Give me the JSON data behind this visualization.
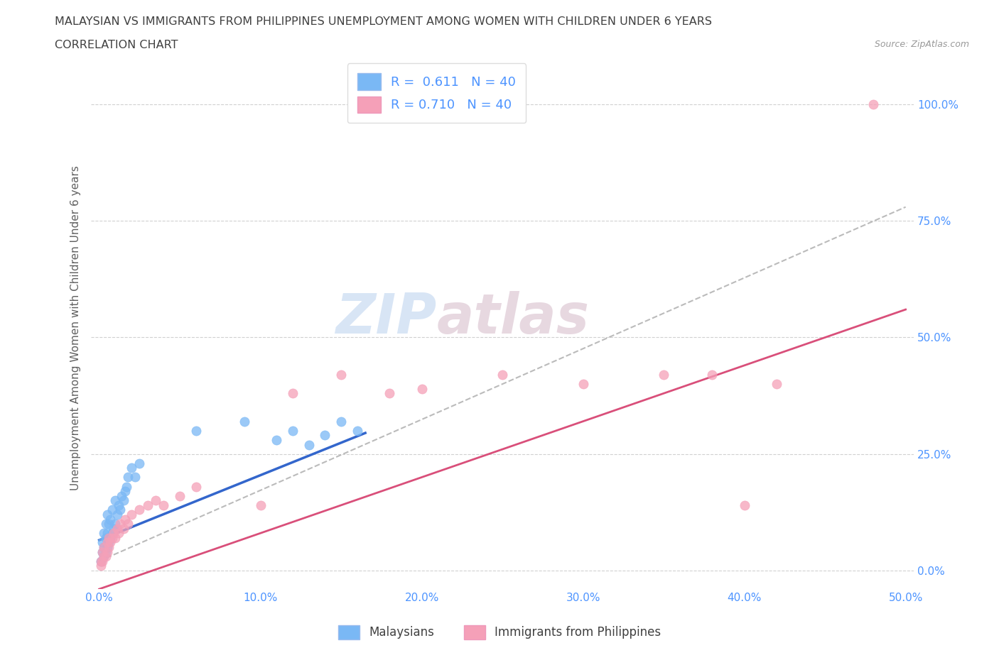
{
  "title_line1": "MALAYSIAN VS IMMIGRANTS FROM PHILIPPINES UNEMPLOYMENT AMONG WOMEN WITH CHILDREN UNDER 6 YEARS",
  "title_line2": "CORRELATION CHART",
  "source": "Source: ZipAtlas.com",
  "ylabel_label": "Unemployment Among Women with Children Under 6 years",
  "xlim": [
    -0.005,
    0.505
  ],
  "ylim": [
    -0.04,
    1.08
  ],
  "xticks": [
    0.0,
    0.1,
    0.2,
    0.3,
    0.4,
    0.5
  ],
  "xticklabels": [
    "0.0%",
    "10.0%",
    "20.0%",
    "30.0%",
    "40.0%",
    "50.0%"
  ],
  "yticks": [
    0.0,
    0.25,
    0.5,
    0.75,
    1.0
  ],
  "yticklabels": [
    "0.0%",
    "25.0%",
    "50.0%",
    "75.0%",
    "100.0%"
  ],
  "malaysian_color": "#7ab8f5",
  "philippines_color": "#f5a0b8",
  "malaysian_line_color": "#3366cc",
  "philippines_line_color": "#d94f7a",
  "dashed_line_color": "#aaaaaa",
  "legend_R_malaysian": "0.611",
  "legend_N_malaysian": "40",
  "legend_R_philippines": "0.710",
  "legend_N_philippines": "40",
  "watermark_zip": "ZIP",
  "watermark_atlas": "atlas",
  "malaysian_x": [
    0.001,
    0.002,
    0.002,
    0.003,
    0.003,
    0.003,
    0.004,
    0.004,
    0.004,
    0.005,
    0.005,
    0.005,
    0.006,
    0.006,
    0.007,
    0.007,
    0.008,
    0.008,
    0.009,
    0.01,
    0.01,
    0.011,
    0.012,
    0.013,
    0.014,
    0.015,
    0.016,
    0.017,
    0.018,
    0.02,
    0.022,
    0.025,
    0.06,
    0.09,
    0.11,
    0.12,
    0.13,
    0.14,
    0.15,
    0.16
  ],
  "malaysian_y": [
    0.02,
    0.04,
    0.06,
    0.03,
    0.05,
    0.08,
    0.04,
    0.07,
    0.1,
    0.05,
    0.08,
    0.12,
    0.06,
    0.1,
    0.07,
    0.11,
    0.08,
    0.13,
    0.09,
    0.1,
    0.15,
    0.12,
    0.14,
    0.13,
    0.16,
    0.15,
    0.17,
    0.18,
    0.2,
    0.22,
    0.2,
    0.23,
    0.3,
    0.32,
    0.28,
    0.3,
    0.27,
    0.29,
    0.32,
    0.3
  ],
  "philippines_x": [
    0.001,
    0.001,
    0.002,
    0.002,
    0.003,
    0.003,
    0.004,
    0.005,
    0.005,
    0.006,
    0.006,
    0.007,
    0.008,
    0.009,
    0.01,
    0.011,
    0.012,
    0.013,
    0.015,
    0.016,
    0.018,
    0.02,
    0.025,
    0.03,
    0.035,
    0.04,
    0.05,
    0.06,
    0.1,
    0.12,
    0.15,
    0.18,
    0.2,
    0.25,
    0.3,
    0.35,
    0.38,
    0.4,
    0.42,
    0.48
  ],
  "philippines_y": [
    0.01,
    0.02,
    0.02,
    0.04,
    0.03,
    0.05,
    0.03,
    0.04,
    0.06,
    0.05,
    0.07,
    0.06,
    0.07,
    0.08,
    0.07,
    0.09,
    0.08,
    0.1,
    0.09,
    0.11,
    0.1,
    0.12,
    0.13,
    0.14,
    0.15,
    0.14,
    0.16,
    0.18,
    0.14,
    0.38,
    0.42,
    0.38,
    0.39,
    0.42,
    0.4,
    0.42,
    0.42,
    0.14,
    0.4,
    1.0
  ],
  "bg_color": "#ffffff",
  "grid_color": "#cccccc",
  "title_color": "#404040",
  "axis_label_color": "#606060",
  "tick_color": "#4d94ff"
}
